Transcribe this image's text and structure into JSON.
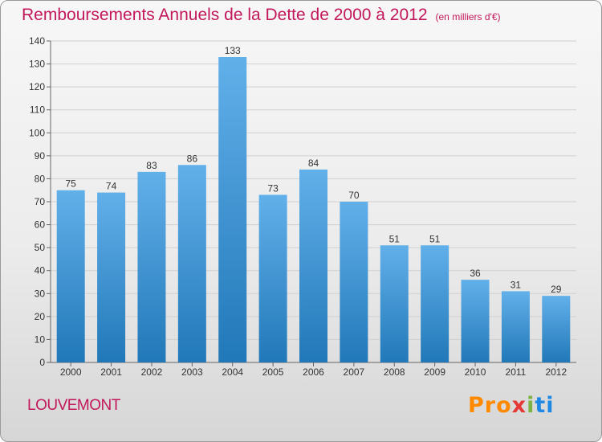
{
  "title": "Remboursements Annuels de la Dette de 2000 à 2012",
  "subtitle": "(en milliers d'€)",
  "place": "LOUVEMONT",
  "logo": {
    "p1": "Pro",
    "p2": "x",
    "p3": "i",
    "p4": "ti"
  },
  "colors": {
    "title": "#c2185b",
    "bar_top": "#62b0ea",
    "bar_bottom": "#2178b8"
  },
  "chart_data": {
    "type": "bar",
    "title": "Remboursements Annuels de la Dette de 2000 à 2012",
    "xlabel": "",
    "ylabel": "",
    "categories": [
      "2000",
      "2001",
      "2002",
      "2003",
      "2004",
      "2005",
      "2006",
      "2007",
      "2008",
      "2009",
      "2010",
      "2011",
      "2012"
    ],
    "values": [
      75,
      74,
      83,
      86,
      133,
      73,
      84,
      70,
      51,
      51,
      36,
      31,
      29
    ],
    "ylim": [
      0,
      140
    ],
    "yticks": [
      0,
      10,
      20,
      30,
      40,
      50,
      60,
      70,
      80,
      90,
      100,
      110,
      120,
      130,
      140
    ],
    "grid": true
  }
}
